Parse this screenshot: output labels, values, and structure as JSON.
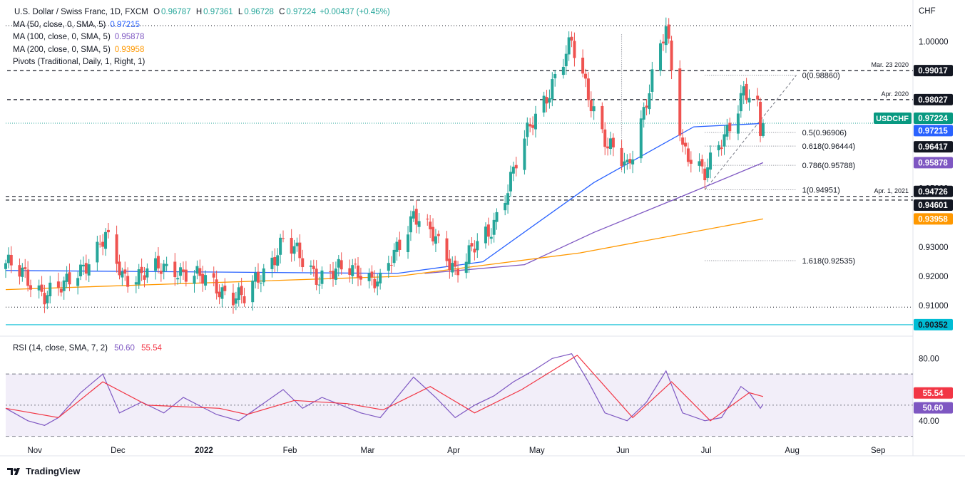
{
  "header": {
    "symbol": "U.S. Dollar / Swiss Franc, 1D, FXCM",
    "ohlc": [
      {
        "k": "O",
        "v": "0.96787"
      },
      {
        "k": "H",
        "v": "0.97361"
      },
      {
        "k": "L",
        "v": "0.96728"
      },
      {
        "k": "C",
        "v": "0.97224"
      }
    ],
    "change": "+0.00437 (+0.45%)",
    "indicators": [
      {
        "label": "MA (50, close, 0, SMA, 5)",
        "value": "0.97215",
        "color": "#2962ff"
      },
      {
        "label": "MA (100, close, 0, SMA, 5)",
        "value": "0.95878",
        "color": "#7e57c2"
      },
      {
        "label": "MA (200, close, 0, SMA, 5)",
        "value": "0.93958",
        "color": "#ff9800"
      },
      {
        "label": "Pivots (Traditional, Daily, 1, Right, 1)",
        "value": "",
        "color": "#131722"
      }
    ],
    "currency": "CHF"
  },
  "rsi": {
    "label": "RSI (14, close, SMA, 7, 2)",
    "value1": "50.60",
    "value2": "55.54",
    "color1": "#7e57c2",
    "color2": "#f23645"
  },
  "footer": {
    "brand": "TradingView"
  },
  "colors": {
    "up": "#26a69a",
    "down": "#ef5350",
    "ma50": "#2962ff",
    "ma100": "#7e57c2",
    "ma200": "#ff9800"
  },
  "chart_data": [
    {
      "type": "candlestick",
      "title": "U.S. Dollar / Swiss Franc, 1D, FXCM",
      "ylim": [
        0.9035,
        1.0055
      ],
      "y_ticks": [
        "1.00000",
        "0.95000",
        "0.93000",
        "0.92000",
        "0.91000"
      ],
      "x_ticks": [
        "Nov",
        "Dec",
        "2022",
        "Feb",
        "Mar",
        "Apr",
        "May",
        "Jun",
        "Jul",
        "Aug",
        "Sep"
      ],
      "x_range": [
        "2021-10-20",
        "2022-09-12"
      ],
      "series": [
        {
          "name": "USDCHF",
          "anchors": [
            [
              "2021-10-20",
              0.9245
            ],
            [
              "2021-11-03",
              0.9145
            ],
            [
              "2021-11-10",
              0.916
            ],
            [
              "2021-11-25",
              0.933
            ],
            [
              "2021-12-01",
              0.92
            ],
            [
              "2021-12-20",
              0.923
            ],
            [
              "2022-01-04",
              0.9165
            ],
            [
              "2022-01-14",
              0.912
            ],
            [
              "2022-01-28",
              0.932
            ],
            [
              "2022-02-10",
              0.92
            ],
            [
              "2022-02-24",
              0.923
            ],
            [
              "2022-03-04",
              0.917
            ],
            [
              "2022-03-16",
              0.942
            ],
            [
              "2022-03-31",
              0.923
            ],
            [
              "2022-04-12",
              0.934
            ],
            [
              "2022-04-28",
              0.973
            ],
            [
              "2022-05-12",
              0.999
            ],
            [
              "2022-05-25",
              0.964
            ],
            [
              "2022-06-01",
              0.957
            ],
            [
              "2022-06-15",
              1.004
            ],
            [
              "2022-06-21",
              0.965
            ],
            [
              "2022-06-29",
              0.954
            ],
            [
              "2022-07-13",
              0.983
            ],
            [
              "2022-07-18",
              0.976
            ],
            [
              "2022-07-19",
              0.96787
            ],
            [
              "2022-07-20",
              0.97224
            ]
          ]
        },
        {
          "name": "MA (50)",
          "points": [
            [
              "2021-10-20",
              0.922
            ],
            [
              "2022-03-10",
              0.921
            ],
            [
              "2022-04-10",
              0.925
            ],
            [
              "2022-05-20",
              0.952
            ],
            [
              "2022-06-25",
              0.971
            ],
            [
              "2022-07-20",
              0.97215
            ]
          ]
        },
        {
          "name": "MA (100)",
          "points": [
            [
              "2022-03-20",
              0.921
            ],
            [
              "2022-04-25",
              0.924
            ],
            [
              "2022-05-20",
              0.935
            ],
            [
              "2022-06-20",
              0.947
            ],
            [
              "2022-07-20",
              0.95878
            ]
          ]
        },
        {
          "name": "MA (200)",
          "points": [
            [
              "2021-10-20",
              0.9155
            ],
            [
              "2022-03-10",
              0.92
            ],
            [
              "2022-05-15",
              0.928
            ],
            [
              "2022-07-20",
              0.93958
            ]
          ]
        }
      ],
      "horizontal_levels": [
        {
          "label": "Mar. 23 2020",
          "value": 0.99017
        },
        {
          "label": "Apr. 2020",
          "value": 0.98027
        },
        {
          "label": "Apr. 1, 2021",
          "value": 0.94726
        },
        {
          "label": "",
          "value": 0.94601
        }
      ],
      "fibonacci": [
        {
          "label": "0(0.98860)",
          "value": 0.9886
        },
        {
          "label": "0.5(0.96906)",
          "value": 0.96906
        },
        {
          "label": "0.618(0.96444)",
          "value": 0.96444
        },
        {
          "label": "0.786(0.95788)",
          "value": 0.95788
        },
        {
          "label": "1(0.94951)",
          "value": 0.94951
        },
        {
          "label": "1.618(0.92535)",
          "value": 0.92535
        }
      ],
      "price_labels": [
        {
          "text": "0.99017",
          "value": 0.99017,
          "bg": "#131722"
        },
        {
          "text": "0.98027",
          "value": 0.98027,
          "bg": "#131722"
        },
        {
          "text": "USDCHF",
          "value": 0.97224,
          "bg": "#089981",
          "side": "left"
        },
        {
          "text": "0.97224",
          "value": 0.97224,
          "bg": "#089981"
        },
        {
          "text": "0.97215",
          "value": 0.97215,
          "bg": "#2962ff"
        },
        {
          "text": "0.96417",
          "value": 0.96417,
          "bg": "#131722"
        },
        {
          "text": "0.95878",
          "value": 0.95878,
          "bg": "#7e57c2"
        },
        {
          "text": "0.94726",
          "value": 0.94726,
          "bg": "#131722"
        },
        {
          "text": "0.94601",
          "value": 0.94601,
          "bg": "#131722"
        },
        {
          "text": "0.93958",
          "value": 0.93958,
          "bg": "#ff9800"
        },
        {
          "text": "0.90352",
          "value": 0.90352,
          "bg": "#00bcd4",
          "fg": "#131722"
        }
      ]
    },
    {
      "type": "line",
      "title": "RSI (14, close, SMA, 7, 2)",
      "ylim": [
        28,
        87
      ],
      "y_ticks": [
        "80.00",
        "40.00"
      ],
      "bands": [
        70,
        50,
        30
      ],
      "series": [
        {
          "name": "RSI",
          "points": [
            [
              "2021-10-20",
              48
            ],
            [
              "2021-10-28",
              40
            ],
            [
              "2021-11-03",
              37
            ],
            [
              "2021-11-08",
              42
            ],
            [
              "2021-11-16",
              58
            ],
            [
              "2021-11-24",
              70
            ],
            [
              "2021-11-30",
              45
            ],
            [
              "2021-12-08",
              52
            ],
            [
              "2021-12-16",
              45
            ],
            [
              "2021-12-23",
              55
            ],
            [
              "2022-01-04",
              44
            ],
            [
              "2022-01-12",
              40
            ],
            [
              "2022-01-20",
              50
            ],
            [
              "2022-01-28",
              60
            ],
            [
              "2022-02-04",
              48
            ],
            [
              "2022-02-11",
              55
            ],
            [
              "2022-02-18",
              50
            ],
            [
              "2022-02-25",
              45
            ],
            [
              "2022-03-04",
              42
            ],
            [
              "2022-03-10",
              55
            ],
            [
              "2022-03-16",
              68
            ],
            [
              "2022-03-24",
              55
            ],
            [
              "2022-03-31",
              42
            ],
            [
              "2022-04-07",
              50
            ],
            [
              "2022-04-14",
              56
            ],
            [
              "2022-04-21",
              65
            ],
            [
              "2022-04-28",
              72
            ],
            [
              "2022-05-05",
              80
            ],
            [
              "2022-05-12",
              83
            ],
            [
              "2022-05-18",
              65
            ],
            [
              "2022-05-24",
              45
            ],
            [
              "2022-06-01",
              40
            ],
            [
              "2022-06-08",
              52
            ],
            [
              "2022-06-15",
              72
            ],
            [
              "2022-06-21",
              45
            ],
            [
              "2022-06-29",
              40
            ],
            [
              "2022-07-05",
              42
            ],
            [
              "2022-07-12",
              62
            ],
            [
              "2022-07-15",
              58
            ],
            [
              "2022-07-19",
              48
            ],
            [
              "2022-07-20",
              50.6
            ]
          ]
        },
        {
          "name": "RSI-based MA",
          "points": [
            [
              "2021-10-20",
              48
            ],
            [
              "2021-11-08",
              42
            ],
            [
              "2021-11-24",
              65
            ],
            [
              "2021-12-10",
              50
            ],
            [
              "2022-01-05",
              48
            ],
            [
              "2022-01-15",
              44
            ],
            [
              "2022-02-01",
              53
            ],
            [
              "2022-02-20",
              51
            ],
            [
              "2022-03-05",
              47
            ],
            [
              "2022-03-22",
              62
            ],
            [
              "2022-04-07",
              45
            ],
            [
              "2022-04-24",
              60
            ],
            [
              "2022-05-14",
              82
            ],
            [
              "2022-06-03",
              42
            ],
            [
              "2022-06-17",
              65
            ],
            [
              "2022-07-01",
              40
            ],
            [
              "2022-07-15",
              58
            ],
            [
              "2022-07-20",
              55.54
            ]
          ]
        }
      ],
      "price_labels": [
        {
          "text": "55.54",
          "value": 55.54,
          "bg": "#f23645"
        },
        {
          "text": "50.60",
          "value": 50.6,
          "bg": "#7e57c2"
        }
      ]
    }
  ]
}
